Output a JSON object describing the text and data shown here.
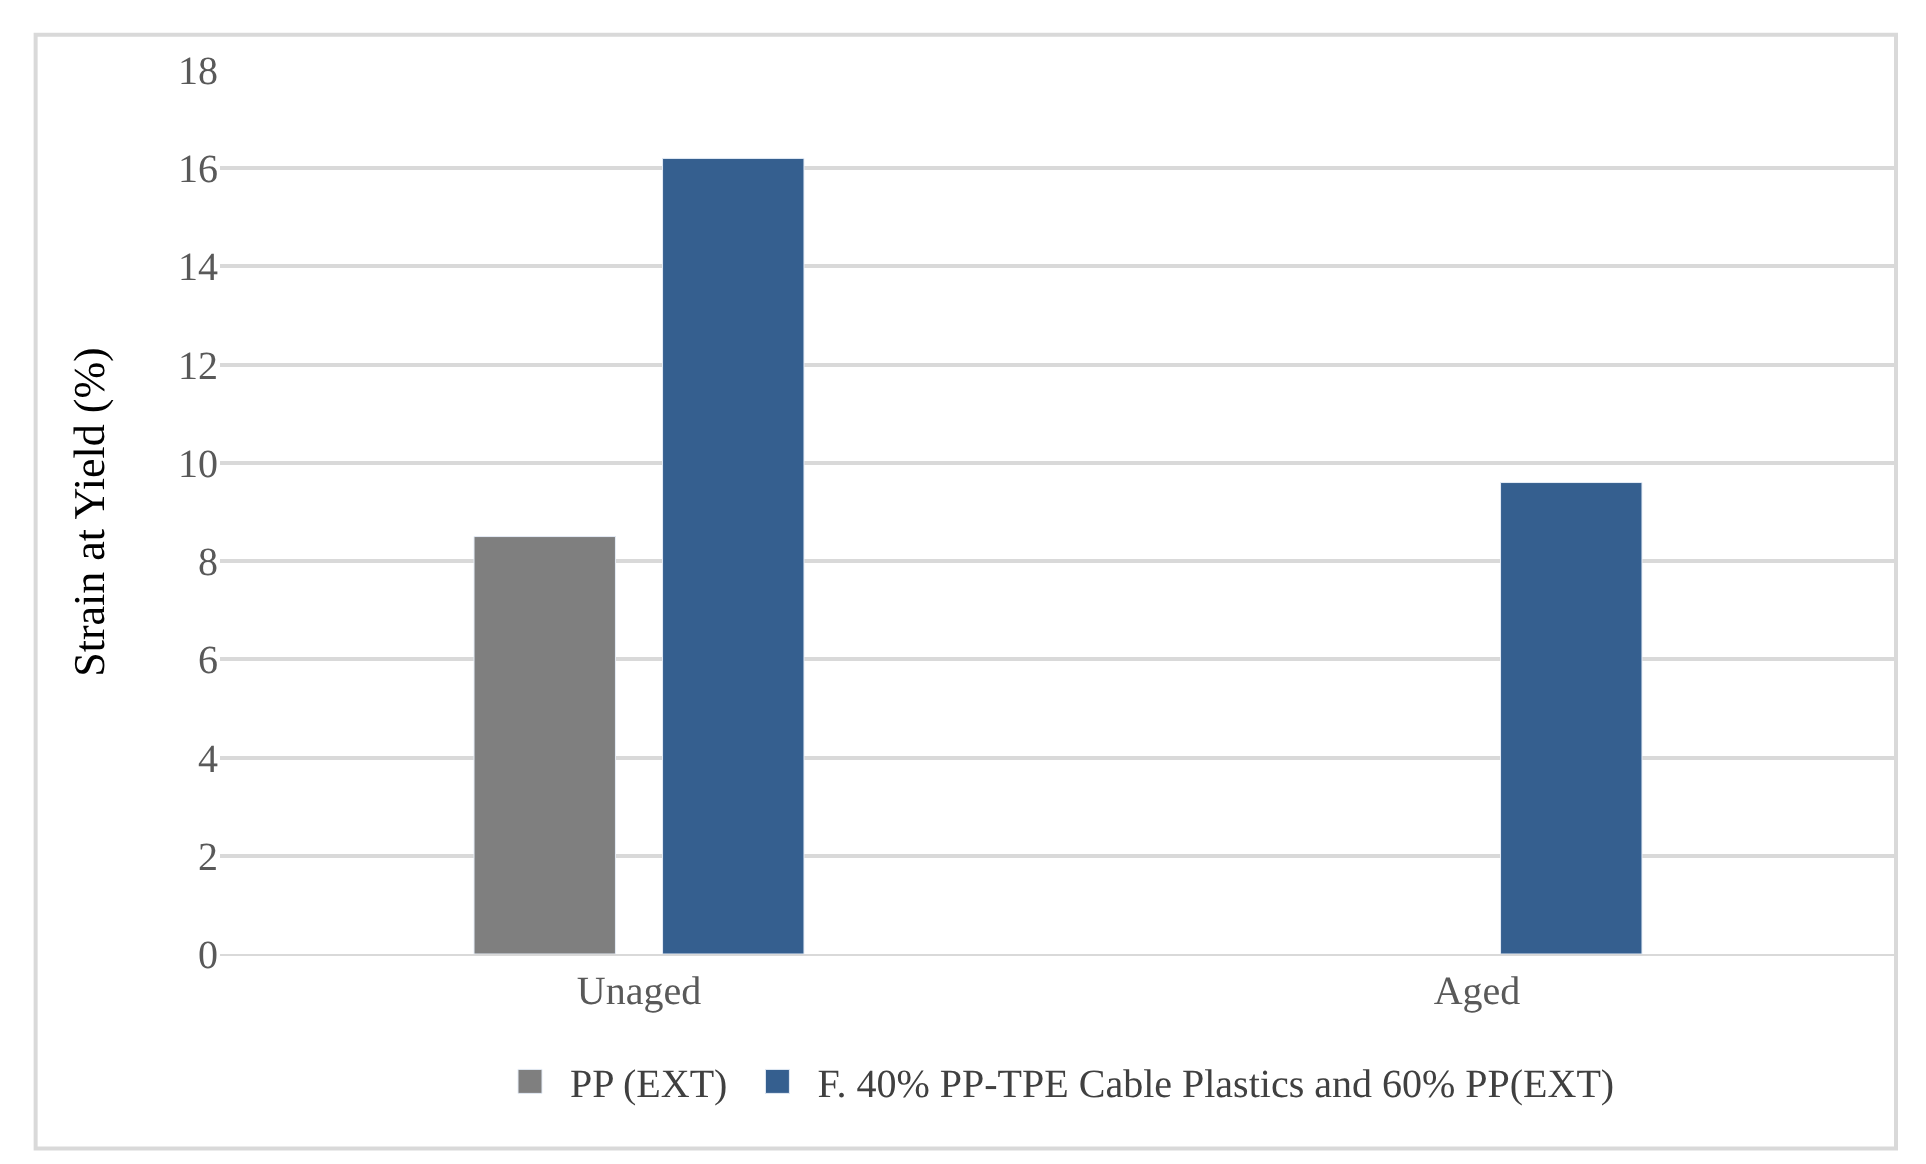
{
  "chart_data": {
    "type": "bar",
    "ylabel": "Strain at Yield (%)",
    "categories": [
      "Unaged",
      "Aged"
    ],
    "series": [
      {
        "name": "PP (EXT)",
        "color": "#7f7f7f",
        "values": [
          8.5,
          null
        ]
      },
      {
        "name": "F. 40% PP-TPE Cable Plastics and 60% PP(EXT)",
        "color": "#355f8f",
        "values": [
          16.2,
          9.6
        ]
      }
    ],
    "ylim": [
      0,
      18
    ],
    "yticks": [
      0,
      2,
      4,
      6,
      8,
      10,
      12,
      14,
      16,
      18
    ],
    "grid": "y",
    "legend": "bottom"
  }
}
